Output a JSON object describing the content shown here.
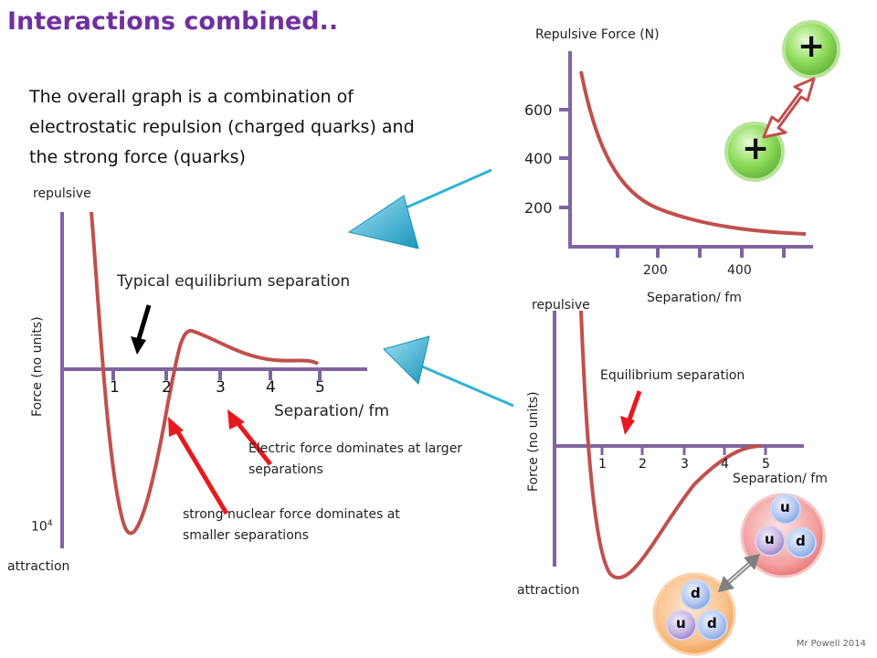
{
  "title": "Interactions combined..",
  "intro_text": "The overall graph is a combination of electrostatic repulsion (charged quarks) and the strong force (quarks)",
  "main_graph": {
    "repulsive_label": "repulsive",
    "attraction_label": "attraction",
    "y_axis_label": "Force (no units)",
    "x_axis_label": "Separation/ fm",
    "x_ticks": [
      "1",
      "2",
      "3",
      "4",
      "5"
    ],
    "y_exponent_label": "10",
    "y_exponent_sup": "4",
    "equilibrium_label": "Typical equilibrium separation",
    "electric_note": "Electric force dominates at larger separations",
    "strong_note": "strong nuclear force dominates at smaller separations"
  },
  "repulsion_graph": {
    "y_axis_label": "Repulsive Force (N)",
    "x_axis_label": "Separation/ fm",
    "y_ticks": [
      "600",
      "400",
      "200"
    ],
    "x_ticks": [
      "200",
      "400"
    ],
    "charge_symbol_1": "+",
    "charge_symbol_2": "+"
  },
  "small_graph": {
    "repulsive_label": "repulsive",
    "attraction_label": "attraction",
    "y_axis_label": "Force (no units)",
    "x_axis_label": "Separation/ fm",
    "x_ticks": [
      "1",
      "2",
      "3",
      "4",
      "5"
    ],
    "equilibrium_label": "Equilibrium separation"
  },
  "nucleons": {
    "proton_quarks": [
      "u",
      "u",
      "d"
    ],
    "neutron_quarks": [
      "d",
      "u",
      "d"
    ]
  },
  "credit": "Mr Powell 2014",
  "colors": {
    "title": "#7030a0",
    "axis": "#8064a2",
    "curve": "#c0504d",
    "arrow": "#e8191e",
    "cyan_arrow": "#31b3d4",
    "charge_green": "#7ed34f",
    "proton_fill": "#f28b8b",
    "neutron_fill": "#f7b26c",
    "quark_blue": "#9bb7e8"
  }
}
